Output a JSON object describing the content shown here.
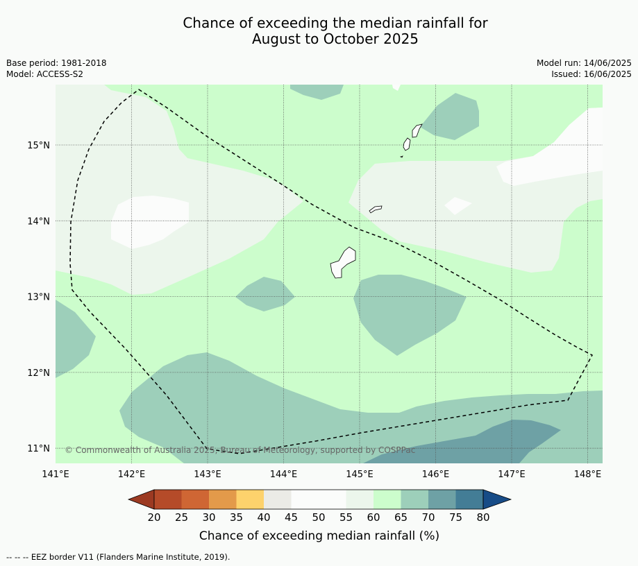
{
  "title": {
    "line1": "Chance of exceeding the median rainfall for",
    "line2": "August to October 2025"
  },
  "info_left": {
    "base_period": "Base period: 1981-2018",
    "model": "Model: ACCESS-S2"
  },
  "info_right": {
    "model_run": "Model run: 14/06/2025",
    "issued": "Issued: 16/06/2025"
  },
  "map": {
    "lon_ticks": [
      "141°E",
      "142°E",
      "143°E",
      "144°E",
      "145°E",
      "146°E",
      "147°E",
      "148°E"
    ],
    "lat_ticks": [
      "15°N",
      "14°N",
      "13°N",
      "12°N",
      "11°N"
    ],
    "copyright": "© Commonwealth of Australia 2025, Bureau of Meteorology, supported by COSPPac"
  },
  "colorbar": {
    "label": "Chance of exceeding median rainfall (%)",
    "ticks": [
      "20",
      "25",
      "30",
      "35",
      "40",
      "45",
      "50",
      "55",
      "60",
      "65",
      "70",
      "75",
      "80"
    ],
    "colors": {
      "below_20": "#9c3a22",
      "20_25": "#b54b29",
      "25_30": "#cf6634",
      "30_35": "#e39a4a",
      "35_40": "#fdd26c",
      "40_45": "#ebebe6",
      "45_50": "#fbfcfb",
      "50_55": "#fbfcfb",
      "55_60": "#ecf6ec",
      "60_65": "#ccfdcc",
      "65_70": "#9dcfba",
      "70_75": "#6ea1a5",
      "75_80": "#437d96",
      "above_80": "#174c87"
    }
  },
  "footer": {
    "legend": "-- -- -- EEZ border V11 (Flanders Marine Institute, 2019)."
  }
}
